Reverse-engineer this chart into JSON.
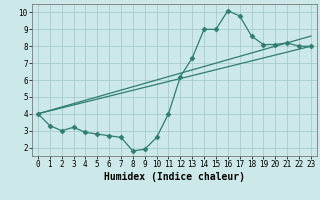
{
  "title": "",
  "xlabel": "Humidex (Indice chaleur)",
  "bg_color": "#cce8e8",
  "line_color": "#2e7d6e",
  "grid_color": "#a0c8c8",
  "xlim": [
    -0.5,
    23.5
  ],
  "ylim": [
    1.5,
    10.5
  ],
  "xticks": [
    0,
    1,
    2,
    3,
    4,
    5,
    6,
    7,
    8,
    9,
    10,
    11,
    12,
    13,
    14,
    15,
    16,
    17,
    18,
    19,
    20,
    21,
    22,
    23
  ],
  "yticks": [
    2,
    3,
    4,
    5,
    6,
    7,
    8,
    9,
    10
  ],
  "line1": {
    "x": [
      0,
      1,
      2,
      3,
      4,
      5,
      6,
      7,
      8,
      9,
      10,
      11,
      12,
      13,
      14,
      15,
      16,
      17,
      18,
      19,
      20,
      21,
      22,
      23
    ],
    "y": [
      4.0,
      3.3,
      3.0,
      3.2,
      2.9,
      2.8,
      2.7,
      2.6,
      1.8,
      1.9,
      2.6,
      4.0,
      6.2,
      7.3,
      9.0,
      9.0,
      10.1,
      9.8,
      8.6,
      8.1,
      8.1,
      8.2,
      8.0,
      8.0
    ]
  },
  "line2": {
    "x": [
      0,
      23
    ],
    "y": [
      4.0,
      8.0
    ]
  },
  "line3": {
    "x": [
      0,
      23
    ],
    "y": [
      4.0,
      8.6
    ]
  },
  "markersize": 2.5,
  "linewidth": 0.9,
  "tick_fontsize": 5.5,
  "xlabel_fontsize": 7
}
